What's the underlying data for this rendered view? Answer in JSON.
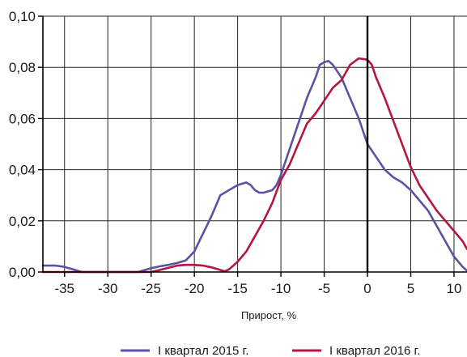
{
  "chart_data": {
    "type": "line",
    "title": "",
    "xlabel": "Прирост, %",
    "ylabel": "",
    "xlim": [
      -37.5,
      11.5
    ],
    "ylim": [
      0,
      0.1
    ],
    "x_ticks": [
      -35,
      -30,
      -25,
      -20,
      -15,
      -10,
      -5,
      0,
      5,
      10
    ],
    "x_tick_labels": [
      "-35",
      "-30",
      "-25",
      "-20",
      "-15",
      "-10",
      "-5",
      "0",
      "5",
      "10"
    ],
    "y_ticks": [
      0,
      0.02,
      0.04,
      0.06,
      0.08,
      0.1
    ],
    "y_tick_labels": [
      "0,00",
      "0,02",
      "0,04",
      "0,06",
      "0,08",
      "0,10"
    ],
    "grid": true,
    "vertical_reference_line_x": 0,
    "legend_position": "bottom",
    "series": [
      {
        "name": "I квартал 2015 г.",
        "color": "#5b52a3",
        "x": [
          -37.5,
          -36,
          -35,
          -34,
          -33,
          -32,
          -30,
          -28,
          -26.5,
          -25,
          -24,
          -23,
          -22,
          -21,
          -20,
          -19,
          -18,
          -17,
          -16,
          -15,
          -14,
          -13.5,
          -13,
          -12.5,
          -12,
          -11,
          -10.5,
          -10,
          -9,
          -8,
          -7,
          -6,
          -5.5,
          -5,
          -4.5,
          -4,
          -3,
          -2,
          -1,
          0,
          1,
          2,
          3,
          4,
          5,
          6,
          7,
          8,
          9,
          10,
          11,
          11.5
        ],
        "y": [
          0.0025,
          0.0025,
          0.002,
          0.001,
          0.0,
          0.0,
          0.0,
          0.0,
          0.0,
          0.0015,
          0.0022,
          0.0028,
          0.0035,
          0.0045,
          0.008,
          0.015,
          0.022,
          0.03,
          0.032,
          0.034,
          0.035,
          0.034,
          0.032,
          0.031,
          0.031,
          0.032,
          0.034,
          0.038,
          0.048,
          0.058,
          0.068,
          0.076,
          0.081,
          0.082,
          0.0825,
          0.081,
          0.076,
          0.068,
          0.06,
          0.05,
          0.045,
          0.04,
          0.037,
          0.035,
          0.032,
          0.028,
          0.024,
          0.018,
          0.012,
          0.006,
          0.002,
          0.0005
        ]
      },
      {
        "name": "I квартал 2016 г.",
        "color": "#b3163e",
        "x": [
          -37.5,
          -35,
          -30,
          -27,
          -25,
          -24,
          -22,
          -21,
          -20,
          -19,
          -18,
          -17,
          -16.5,
          -16,
          -15,
          -14,
          -13,
          -12,
          -11,
          -10,
          -9,
          -8,
          -7,
          -6,
          -5,
          -4,
          -3,
          -2,
          -1,
          0,
          0.5,
          1,
          2,
          3,
          4,
          5,
          6,
          7,
          8,
          9,
          10,
          11,
          11.5
        ],
        "y": [
          0.0,
          0.0,
          0.0,
          0.0,
          0.0,
          0.0008,
          0.0025,
          0.0028,
          0.0028,
          0.0025,
          0.0018,
          0.0008,
          0.0003,
          0.001,
          0.004,
          0.008,
          0.014,
          0.02,
          0.027,
          0.036,
          0.042,
          0.05,
          0.058,
          0.062,
          0.067,
          0.072,
          0.075,
          0.081,
          0.0835,
          0.083,
          0.081,
          0.076,
          0.068,
          0.059,
          0.05,
          0.041,
          0.034,
          0.029,
          0.024,
          0.02,
          0.016,
          0.012,
          0.009
        ]
      }
    ]
  }
}
